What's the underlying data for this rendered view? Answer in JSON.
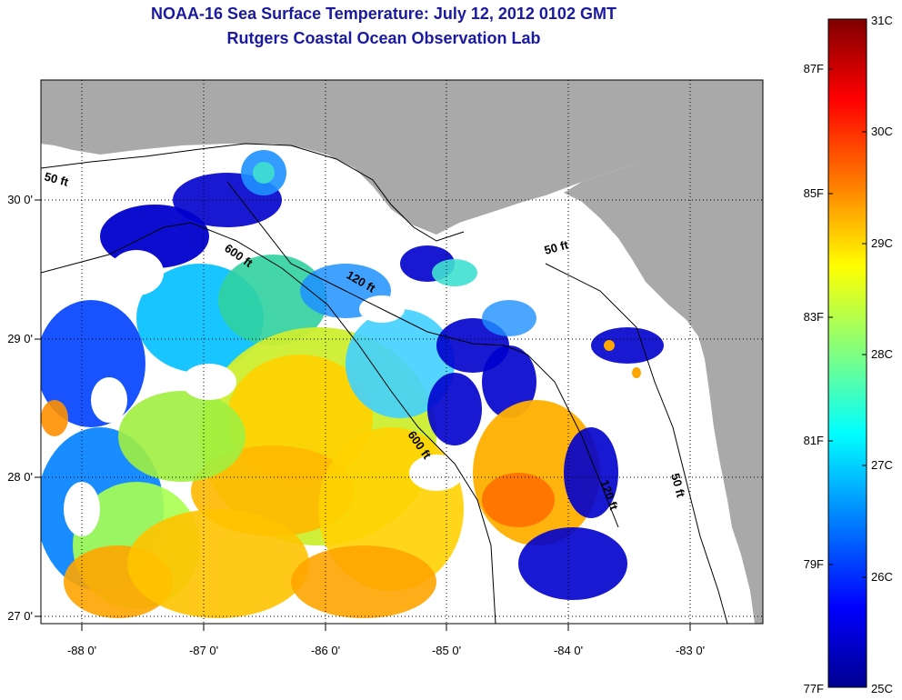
{
  "map": {
    "title_line1": "NOAA-16 Sea Surface Temperature:  July 12, 2012 0102 GMT",
    "title_line2": "Rutgers Coastal Ocean Observation Lab",
    "longitude_ticks": [
      "-88 0'",
      "-87 0'",
      "-86 0'",
      "-85 0'",
      "-84 0'",
      "-83 0'"
    ],
    "latitude_ticks": [
      "30 0'",
      "29 0'",
      "28 0'",
      "27 0'"
    ],
    "isobath_labels": [
      "50 ft",
      "600 ft",
      "120 ft",
      "50 ft",
      "600 ft",
      "120 ft",
      "50 ft"
    ],
    "colors": {
      "land": "#a9a9a9",
      "no_data": "#ffffff",
      "title": "#1a1aa0"
    }
  },
  "colorbar": {
    "fahrenheit_labels": [
      "87F",
      "85F",
      "83F",
      "81F",
      "79F",
      "77F"
    ],
    "celsius_labels": [
      "31C",
      "30C",
      "29C",
      "28C",
      "27C",
      "26C",
      "25C"
    ],
    "stops": [
      "#7f0000",
      "#ff0000",
      "#ff8000",
      "#ffff00",
      "#80ff80",
      "#00ffff",
      "#0080ff",
      "#0000ff",
      "#00008f"
    ]
  }
}
